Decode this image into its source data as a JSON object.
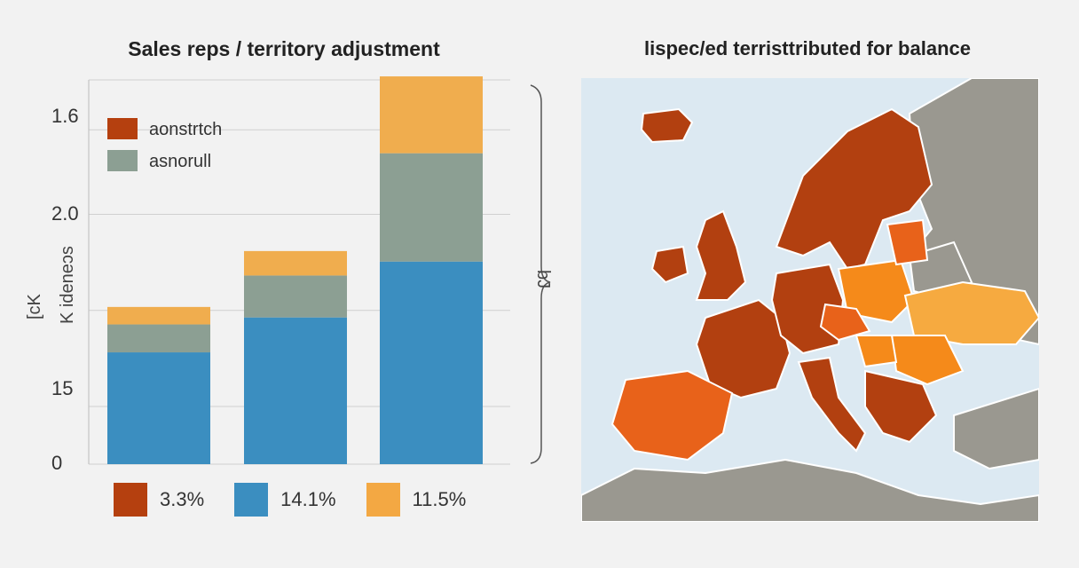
{
  "left_title": "Sales reps / territory adjustment",
  "right_title": "lispec/ed terristtributed for balance",
  "chart_data": {
    "type": "bar",
    "stacked": true,
    "title": "Sales reps / territory adjustment",
    "y_tick_labels": [
      "1.6",
      "2.0",
      "15",
      "0"
    ],
    "ylabel_lines": [
      "[cK",
      "K ideneɔs"
    ],
    "right_bracket_label": "bJ",
    "categories": [
      "",
      "",
      ""
    ],
    "series": [
      {
        "name": "",
        "color": "#3b8ec0",
        "values": [
          0.32,
          0.42,
          0.58
        ]
      },
      {
        "name": "asnorull",
        "color": "#8c9f93",
        "values": [
          0.08,
          0.12,
          0.31
        ]
      },
      {
        "name": "aonstrtch",
        "color": "#f0ad4e",
        "values": [
          0.05,
          0.07,
          0.22
        ]
      }
    ],
    "ylim": [
      0,
      1.1
    ],
    "grid": true,
    "legend_top": [
      {
        "label": "aonstrtch",
        "color": "#b5400f"
      },
      {
        "label": "asnorull",
        "color": "#8c9f93"
      }
    ],
    "legend_bottom": [
      {
        "label": "3.3%",
        "color": "#b5400f"
      },
      {
        "label": "14.1%",
        "color": "#3b8ec0"
      },
      {
        "label": "11.5%",
        "color": "#f3a843"
      }
    ]
  },
  "map": {
    "colors": {
      "sea": "#dce9f2",
      "land_other": "#9a9890",
      "dark": "#b24010",
      "mid": "#e8621a",
      "bright": "#f58a1a",
      "light": "#f6aa40"
    }
  }
}
